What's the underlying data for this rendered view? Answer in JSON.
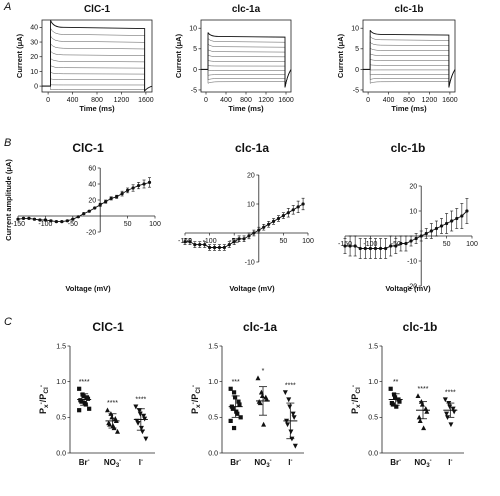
{
  "panel_labels": [
    "A",
    "B",
    "C"
  ],
  "panel_a": {
    "traces": [
      {
        "title": "ClC-1",
        "xlabel": "Time (ms)",
        "ylabel": "Current (μA)",
        "x_ticks": [
          "0",
          "400",
          "800",
          "1200",
          "1600"
        ],
        "y_ticks": [
          "0",
          "10",
          "20",
          "30",
          "40"
        ],
        "ylim": [
          -4,
          45
        ],
        "peak": 40,
        "n_sweeps": 11
      },
      {
        "title": "clc-1a",
        "xlabel": "Time (ms)",
        "ylabel": "Current (μA)",
        "x_ticks": [
          "0",
          "400",
          "800",
          "1200",
          "1600"
        ],
        "y_ticks": [
          "-5",
          "0",
          "5",
          "10"
        ],
        "ylim": [
          -5.5,
          12
        ],
        "peak": 8,
        "n_sweeps": 11
      },
      {
        "title": "clc-1b",
        "xlabel": "Time (ms)",
        "ylabel": "Current (μA)",
        "x_ticks": [
          "0",
          "400",
          "800",
          "1200",
          "1600"
        ],
        "y_ticks": [
          "-5",
          "0",
          "5",
          "10"
        ],
        "ylim": [
          -5.5,
          12
        ],
        "peak": 8.5,
        "n_sweeps": 11
      }
    ]
  },
  "chart_data": [
    {
      "type": "line",
      "title": "ClC-1",
      "xlabel": "Voltage (mV)",
      "ylabel": "Current amplitude (μA)",
      "xlim": [
        -150,
        100
      ],
      "ylim": [
        -20,
        60
      ],
      "x_ticks": [
        "-150",
        "-100",
        "-50",
        "50",
        "100"
      ],
      "y_ticks": [
        "-20",
        "20",
        "40",
        "60"
      ],
      "x": [
        -150,
        -140,
        -130,
        -120,
        -110,
        -100,
        -90,
        -80,
        -70,
        -60,
        -50,
        -40,
        -30,
        -20,
        -10,
        0,
        10,
        20,
        30,
        40,
        50,
        60,
        70,
        80,
        90
      ],
      "y": [
        -4,
        -3,
        -3,
        -4,
        -5,
        -5,
        -6,
        -7,
        -7,
        -6,
        -4,
        -1,
        3,
        6,
        10,
        14,
        18,
        22,
        24,
        28,
        32,
        35,
        38,
        40,
        42
      ],
      "err": [
        1,
        1,
        1,
        1,
        1,
        1,
        1,
        1,
        1,
        1,
        1,
        1,
        1,
        1,
        1,
        2,
        2,
        2,
        2,
        3,
        3,
        4,
        4,
        5,
        6
      ]
    },
    {
      "type": "line",
      "title": "clc-1a",
      "xlabel": "Voltage (mV)",
      "ylabel": "",
      "xlim": [
        -150,
        100
      ],
      "ylim": [
        -10,
        20
      ],
      "x_ticks": [
        "-150",
        "-100",
        "-50",
        "50",
        "100"
      ],
      "y_ticks": [
        "-10",
        "10",
        "20"
      ],
      "x": [
        -150,
        -140,
        -130,
        -120,
        -110,
        -100,
        -90,
        -80,
        -70,
        -60,
        -50,
        -40,
        -30,
        -20,
        -10,
        0,
        10,
        20,
        30,
        40,
        50,
        60,
        70,
        80,
        90
      ],
      "y": [
        -3,
        -3,
        -4,
        -4,
        -4,
        -5,
        -5,
        -5,
        -5,
        -4,
        -3,
        -2,
        -2,
        -1,
        0,
        1,
        2,
        3,
        4,
        5,
        6,
        7,
        8,
        9,
        10
      ],
      "err": [
        1,
        1,
        1,
        1,
        1,
        1,
        1,
        1,
        1,
        1,
        1,
        1,
        1,
        1,
        1,
        1,
        1,
        1,
        1,
        1,
        1,
        1.5,
        1.5,
        2,
        2
      ]
    },
    {
      "type": "line",
      "title": "clc-1b",
      "xlabel": "Voltage (mV)",
      "ylabel": "",
      "xlim": [
        -150,
        100
      ],
      "ylim": [
        -20,
        20
      ],
      "x_ticks": [
        "-150",
        "-100",
        "-50",
        "50",
        "100"
      ],
      "y_ticks": [
        "-20",
        "-10",
        "10",
        "20"
      ],
      "x": [
        -150,
        -140,
        -130,
        -120,
        -110,
        -100,
        -90,
        -80,
        -70,
        -60,
        -50,
        -40,
        -30,
        -20,
        -10,
        0,
        10,
        20,
        30,
        40,
        50,
        60,
        70,
        80,
        90
      ],
      "y": [
        -4,
        -4,
        -4,
        -5,
        -5,
        -5,
        -5,
        -5,
        -5,
        -4,
        -4,
        -3,
        -3,
        -2,
        -1,
        0,
        1,
        2,
        3,
        4,
        5,
        6,
        7,
        8,
        10
      ],
      "err": [
        3,
        4,
        4,
        4,
        4,
        4,
        4,
        4,
        4,
        4,
        3,
        3,
        3,
        2,
        2,
        2,
        2,
        3,
        3,
        3,
        4,
        4,
        4,
        5,
        5
      ]
    },
    {
      "type": "scatter",
      "title": "ClC-1",
      "ylabel": "P_x/P_Cl",
      "ylim": [
        0,
        1.5
      ],
      "y_ticks": [
        "0.0",
        "0.5",
        "1.0",
        "1.5"
      ],
      "categories": [
        "Br",
        "NO3",
        "I"
      ],
      "category_labels": [
        {
          "base": "Br",
          "sub": "",
          "sup": "-"
        },
        {
          "base": "NO",
          "sub": "3",
          "sup": "-"
        },
        {
          "base": "I",
          "sub": "",
          "sup": "-"
        }
      ],
      "markers": [
        "square",
        "triangle-up",
        "triangle-down"
      ],
      "significance": [
        "****",
        "****",
        "****"
      ],
      "means": [
        0.75,
        0.45,
        0.47
      ],
      "sd": [
        0.08,
        0.1,
        0.15
      ],
      "points": [
        [
          0.9,
          0.82,
          0.8,
          0.78,
          0.76,
          0.74,
          0.72,
          0.7,
          0.68,
          0.62,
          0.6
        ],
        [
          0.6,
          0.55,
          0.5,
          0.48,
          0.45,
          0.42,
          0.4,
          0.38,
          0.35,
          0.3
        ],
        [
          0.65,
          0.6,
          0.55,
          0.52,
          0.48,
          0.45,
          0.42,
          0.35,
          0.3,
          0.2
        ]
      ]
    },
    {
      "type": "scatter",
      "title": "clc-1a",
      "ylabel": "P_x/P_Cl",
      "ylim": [
        0,
        1.5
      ],
      "y_ticks": [
        "0.0",
        "0.5",
        "1.0",
        "1.5"
      ],
      "categories": [
        "Br",
        "NO3",
        "I"
      ],
      "category_labels": [
        {
          "base": "Br",
          "sub": "",
          "sup": "-"
        },
        {
          "base": "NO",
          "sub": "3",
          "sup": "-"
        },
        {
          "base": "I",
          "sub": "",
          "sup": "-"
        }
      ],
      "markers": [
        "square",
        "triangle-up",
        "triangle-down"
      ],
      "significance": [
        "***",
        "*",
        "****"
      ],
      "means": [
        0.65,
        0.73,
        0.45
      ],
      "sd": [
        0.15,
        0.2,
        0.25
      ],
      "points": [
        [
          0.9,
          0.85,
          0.78,
          0.72,
          0.68,
          0.65,
          0.62,
          0.58,
          0.55,
          0.5,
          0.45,
          0.35
        ],
        [
          1.05,
          0.85,
          0.8,
          0.78,
          0.75,
          0.72,
          0.7,
          0.4
        ],
        [
          0.85,
          0.75,
          0.65,
          0.55,
          0.5,
          0.45,
          0.4,
          0.3,
          0.2,
          0.1
        ]
      ]
    },
    {
      "type": "scatter",
      "title": "clc-1b",
      "ylabel": "P_x/P_Cl",
      "ylim": [
        0,
        1.5
      ],
      "y_ticks": [
        "0.0",
        "0.5",
        "1.0",
        "1.5"
      ],
      "categories": [
        "Br",
        "NO3",
        "I"
      ],
      "category_labels": [
        {
          "base": "Br",
          "sub": "",
          "sup": "-"
        },
        {
          "base": "NO",
          "sub": "3",
          "sup": "-"
        },
        {
          "base": "I",
          "sub": "",
          "sup": "-"
        }
      ],
      "markers": [
        "square",
        "triangle-up",
        "triangle-down"
      ],
      "significance": [
        "**",
        "****",
        "****"
      ],
      "means": [
        0.75,
        0.6,
        0.6
      ],
      "sd": [
        0.08,
        0.12,
        0.1
      ],
      "points": [
        [
          0.9,
          0.82,
          0.78,
          0.75,
          0.72,
          0.7,
          0.68,
          0.65
        ],
        [
          0.8,
          0.72,
          0.68,
          0.62,
          0.58,
          0.5,
          0.45,
          0.35
        ],
        [
          0.75,
          0.7,
          0.65,
          0.62,
          0.58,
          0.55,
          0.5,
          0.4
        ]
      ]
    }
  ]
}
